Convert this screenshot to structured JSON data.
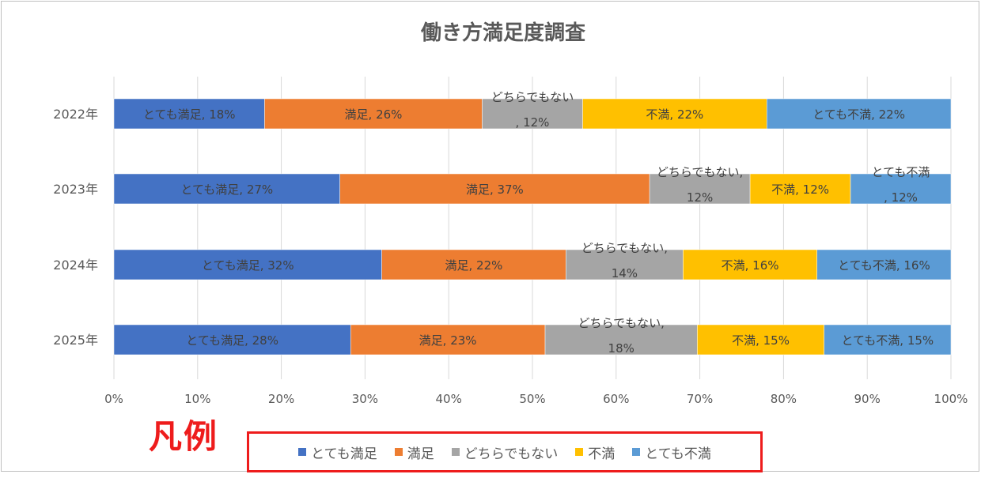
{
  "chart_data": {
    "type": "bar",
    "orientation": "horizontal",
    "stacked": "percent",
    "title": "働き方満足度調査",
    "categories": [
      "2022年",
      "2023年",
      "2024年",
      "2025年"
    ],
    "series": [
      {
        "name": "とても満足",
        "color": "#4472c4",
        "values": [
          18,
          27,
          32,
          28
        ],
        "labels": [
          [
            "とても満足, 18%"
          ],
          [
            "とても満足, 27%"
          ],
          [
            "とても満足, 32%"
          ],
          [
            "とても満足, 28%"
          ]
        ]
      },
      {
        "name": "満足",
        "color": "#ed7d31",
        "values": [
          26,
          37,
          22,
          23
        ],
        "labels": [
          [
            "満足, 26%"
          ],
          [
            "満足, 37%"
          ],
          [
            "満足, 22%"
          ],
          [
            "満足, 23%"
          ]
        ]
      },
      {
        "name": "どちらでもない",
        "color": "#a5a5a5",
        "values": [
          12,
          12,
          14,
          18
        ],
        "labels": [
          [
            "どちらでもない",
            ", 12%"
          ],
          [
            "どちらでもない,",
            "12%"
          ],
          [
            "どちらでもない,",
            "14%"
          ],
          [
            "どちらでもない,",
            "18%"
          ]
        ]
      },
      {
        "name": "不満",
        "color": "#ffc000",
        "values": [
          22,
          12,
          16,
          15
        ],
        "labels": [
          [
            "不満, 22%"
          ],
          [
            "不満, 12%"
          ],
          [
            "不満, 16%"
          ],
          [
            "不満, 15%"
          ]
        ]
      },
      {
        "name": "とても不満",
        "color": "#5b9bd5",
        "values": [
          22,
          12,
          16,
          15
        ],
        "labels": [
          [
            "とても不満, 22%"
          ],
          [
            "とても不満",
            ", 12%"
          ],
          [
            "とても不満, 16%"
          ],
          [
            "とても不満, 15%"
          ]
        ]
      }
    ],
    "xlim": [
      0,
      100
    ],
    "x_ticks": [
      "0%",
      "10%",
      "20%",
      "30%",
      "40%",
      "50%",
      "60%",
      "70%",
      "80%",
      "90%",
      "100%"
    ],
    "grid": true,
    "legend_position": "bottom"
  },
  "legend": {
    "callout_label": "凡例"
  }
}
